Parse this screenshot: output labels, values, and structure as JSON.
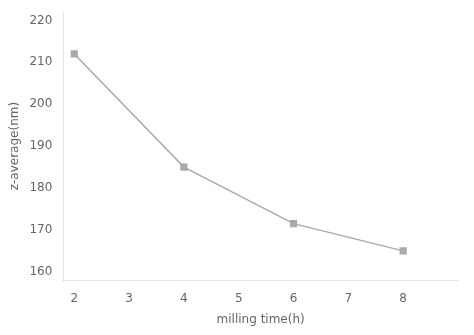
{
  "chart_data": {
    "type": "line",
    "x": [
      2,
      4,
      6,
      8
    ],
    "values": [
      212,
      185,
      171.5,
      165
    ],
    "xlabel": "milling time(h)",
    "ylabel": "z-average(nm)",
    "xlim": [
      1.8,
      9.0
    ],
    "ylim": [
      158,
      222
    ],
    "xticks": [
      2,
      3,
      4,
      5,
      6,
      7,
      8
    ],
    "yticks": [
      160,
      170,
      180,
      190,
      200,
      210,
      220
    ],
    "color": "#aaaaaa",
    "marker": "square",
    "grid": false
  }
}
